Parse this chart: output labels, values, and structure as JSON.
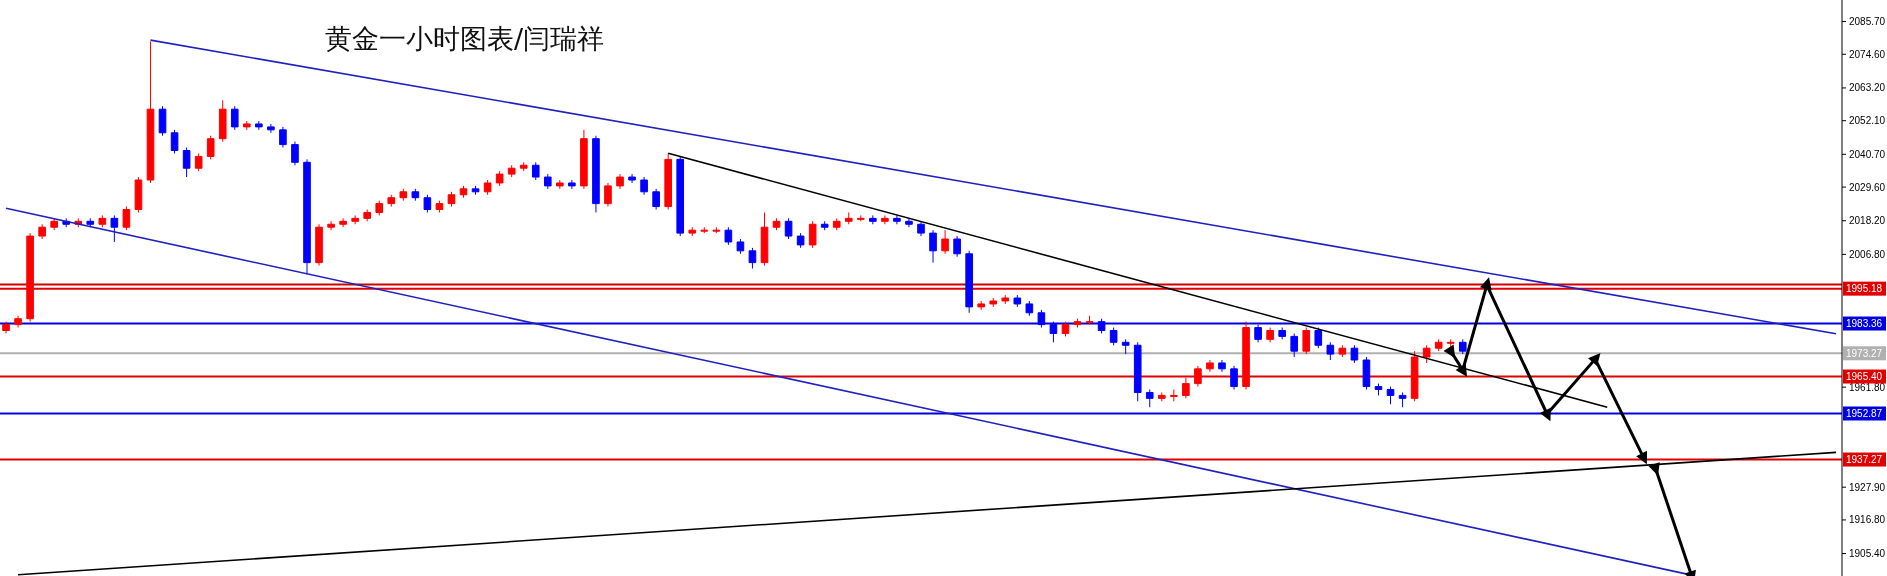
{
  "chart_data": {
    "type": "candlestick",
    "title": "黄金一小时图表/闫瑞祥",
    "categories": [
      null,
      null,
      null,
      null,
      null,
      null,
      null,
      null,
      null,
      null,
      null,
      null,
      null,
      null,
      null,
      null,
      null,
      null,
      null,
      null,
      null,
      null,
      null,
      null,
      null,
      null,
      null,
      null,
      null,
      null,
      null,
      null,
      null,
      null,
      null,
      null,
      null,
      null,
      null,
      null,
      null,
      null,
      null,
      null,
      null,
      null,
      null,
      null,
      null,
      null,
      null,
      null,
      null,
      null,
      null,
      null,
      null,
      null,
      null,
      null,
      null,
      null,
      null,
      null,
      null,
      null,
      null,
      null,
      null,
      null,
      null,
      null,
      null,
      null,
      null,
      null,
      null,
      null,
      null,
      null,
      null,
      null,
      null,
      null,
      null,
      null,
      null,
      null,
      null,
      null,
      null,
      null,
      null,
      null,
      null,
      null,
      null,
      null,
      null,
      null,
      null,
      null,
      null,
      null,
      null,
      null,
      null,
      null,
      null,
      null,
      null,
      null,
      null,
      null,
      null,
      null,
      null,
      null,
      null,
      null,
      null,
      null,
      null,
      null,
      null,
      null,
      null,
      null,
      null,
      null,
      null,
      null,
      null,
      null,
      null,
      null,
      null,
      null,
      null,
      null,
      null,
      null,
      null,
      null,
      null,
      null,
      null,
      null,
      null,
      null,
      null,
      null,
      null
    ],
    "ohlc": [
      [
        1981,
        1984,
        1980,
        1983
      ],
      [
        1983,
        1986,
        1982,
        1985
      ],
      [
        1985,
        2014,
        1984,
        2013
      ],
      [
        2013,
        2017,
        2012,
        2016
      ],
      [
        2016,
        2019,
        2015,
        2018
      ],
      [
        2018,
        2019,
        2016,
        2017
      ],
      [
        2017,
        2019,
        2016,
        2018
      ],
      [
        2018,
        2019,
        2016,
        2017
      ],
      [
        2017,
        2020,
        2016,
        2019
      ],
      [
        2019,
        2020,
        2011,
        2016
      ],
      [
        2016,
        2023,
        2015,
        2022
      ],
      [
        2022,
        2033,
        2021,
        2032
      ],
      [
        2032,
        2079,
        2031,
        2056
      ],
      [
        2056,
        2057,
        2047,
        2048
      ],
      [
        2048,
        2049,
        2041,
        2042
      ],
      [
        2042,
        2043,
        2033,
        2036
      ],
      [
        2036,
        2041,
        2035,
        2040
      ],
      [
        2040,
        2047,
        2039,
        2046
      ],
      [
        2046,
        2059,
        2045,
        2056
      ],
      [
        2056,
        2057,
        2049,
        2050
      ],
      [
        2050,
        2052,
        2049,
        2051
      ],
      [
        2051,
        2052,
        2049,
        2050
      ],
      [
        2050,
        2051,
        2048,
        2049
      ],
      [
        2049,
        2050,
        2043,
        2044
      ],
      [
        2044,
        2045,
        2037,
        2038
      ],
      [
        2038,
        2039,
        2000,
        2004
      ],
      [
        2004,
        2017,
        2003,
        2016
      ],
      [
        2016,
        2018,
        2015,
        2017
      ],
      [
        2017,
        2019,
        2016,
        2018
      ],
      [
        2018,
        2020,
        2017,
        2019
      ],
      [
        2019,
        2022,
        2018,
        2021
      ],
      [
        2021,
        2025,
        2020,
        2024
      ],
      [
        2024,
        2027,
        2023,
        2026
      ],
      [
        2026,
        2029,
        2025,
        2028
      ],
      [
        2028,
        2029,
        2025,
        2026
      ],
      [
        2026,
        2027,
        2021,
        2022
      ],
      [
        2022,
        2025,
        2021,
        2024
      ],
      [
        2024,
        2028,
        2023,
        2027
      ],
      [
        2027,
        2030,
        2026,
        2029
      ],
      [
        2029,
        2030,
        2027,
        2028
      ],
      [
        2028,
        2032,
        2027,
        2031
      ],
      [
        2031,
        2035,
        2030,
        2034
      ],
      [
        2034,
        2037,
        2033,
        2036
      ],
      [
        2036,
        2038,
        2035,
        2037
      ],
      [
        2037,
        2038,
        2032,
        2033
      ],
      [
        2033,
        2034,
        2029,
        2030
      ],
      [
        2030,
        2032,
        2029,
        2031
      ],
      [
        2031,
        2032,
        2029,
        2030
      ],
      [
        2030,
        2049,
        2029,
        2046
      ],
      [
        2046,
        2047,
        2021,
        2024
      ],
      [
        2024,
        2031,
        2023,
        2030
      ],
      [
        2030,
        2034,
        2029,
        2033
      ],
      [
        2033,
        2034,
        2031,
        2032
      ],
      [
        2032,
        2033,
        2027,
        2028
      ],
      [
        2028,
        2029,
        2022,
        2023
      ],
      [
        2023,
        2041,
        2022,
        2039
      ],
      [
        2039,
        2040,
        2013,
        2014
      ],
      [
        2014,
        2016,
        2013,
        2015
      ],
      [
        2015,
        2016,
        2014,
        2015
      ],
      [
        2015,
        2016,
        2014,
        2015
      ],
      [
        2015,
        2016,
        2010,
        2011
      ],
      [
        2011,
        2012,
        2007,
        2008
      ],
      [
        2008,
        2009,
        2002,
        2004
      ],
      [
        2004,
        2021,
        2003,
        2016
      ],
      [
        2016,
        2019,
        2015,
        2018
      ],
      [
        2018,
        2019,
        2012,
        2013
      ],
      [
        2013,
        2014,
        2009,
        2010
      ],
      [
        2010,
        2018,
        2009,
        2017
      ],
      [
        2017,
        2018,
        2015,
        2016
      ],
      [
        2016,
        2019,
        2015,
        2018
      ],
      [
        2018,
        2021,
        2017,
        2019
      ],
      [
        2019,
        2020,
        2018,
        2019
      ],
      [
        2019,
        2020,
        2017,
        2018
      ],
      [
        2018,
        2020,
        2017,
        2019
      ],
      [
        2019,
        2020,
        2017,
        2018
      ],
      [
        2018,
        2019,
        2016,
        2017
      ],
      [
        2017,
        2018,
        2013,
        2014
      ],
      [
        2014,
        2015,
        2004,
        2008
      ],
      [
        2008,
        2015,
        2007,
        2012
      ],
      [
        2012,
        2013,
        2006,
        2007
      ],
      [
        2007,
        2008,
        1987,
        1989
      ],
      [
        1989,
        1991,
        1988,
        1990
      ],
      [
        1990,
        1992,
        1989,
        1991
      ],
      [
        1991,
        1993,
        1990,
        1992
      ],
      [
        1992,
        1993,
        1989,
        1990
      ],
      [
        1990,
        1991,
        1986,
        1987
      ],
      [
        1987,
        1988,
        1982,
        1983
      ],
      [
        1983,
        1984,
        1977,
        1980
      ],
      [
        1980,
        1984,
        1979,
        1983
      ],
      [
        1983,
        1985,
        1982,
        1984
      ],
      [
        1984,
        1986,
        1983,
        1984
      ],
      [
        1984,
        1985,
        1980,
        1981
      ],
      [
        1981,
        1982,
        1976,
        1977
      ],
      [
        1977,
        1978,
        1973,
        1976
      ],
      [
        1976,
        1977,
        1957,
        1960
      ],
      [
        1960,
        1961,
        1955,
        1958
      ],
      [
        1958,
        1960,
        1957,
        1959
      ],
      [
        1959,
        1961,
        1957,
        1959
      ],
      [
        1959,
        1965,
        1958,
        1963
      ],
      [
        1963,
        1969,
        1962,
        1968
      ],
      [
        1968,
        1971,
        1967,
        1970
      ],
      [
        1970,
        1971,
        1967,
        1968
      ],
      [
        1968,
        1969,
        1961,
        1962
      ],
      [
        1962,
        1984,
        1961,
        1982
      ],
      [
        1982,
        1983,
        1977,
        1978
      ],
      [
        1978,
        1982,
        1977,
        1981
      ],
      [
        1981,
        1982,
        1978,
        1979
      ],
      [
        1979,
        1980,
        1972,
        1974
      ],
      [
        1974,
        1982,
        1973,
        1981
      ],
      [
        1981,
        1982,
        1975,
        1976
      ],
      [
        1976,
        1977,
        1971,
        1973
      ],
      [
        1973,
        1976,
        1972,
        1975
      ],
      [
        1975,
        1976,
        1970,
        1971
      ],
      [
        1971,
        1972,
        1961,
        1962
      ],
      [
        1962,
        1963,
        1959,
        1961
      ],
      [
        1961,
        1962,
        1956,
        1959
      ],
      [
        1959,
        1960,
        1955,
        1958
      ],
      [
        1958,
        1974,
        1957,
        1972
      ],
      [
        1972,
        1976,
        1970,
        1975
      ],
      [
        1975,
        1978,
        1974,
        1977
      ],
      [
        1977,
        1978,
        1975,
        1977
      ],
      [
        1977,
        1978,
        1973,
        1974
      ],
      null,
      null,
      null,
      null,
      null,
      null,
      null,
      null,
      null,
      null,
      null,
      null,
      null,
      null,
      null,
      null,
      null,
      null,
      null,
      null,
      null,
      null,
      null,
      null,
      null,
      null,
      null,
      null,
      null,
      null,
      null
    ],
    "colors": [
      "#ff0000",
      "#ff0000",
      "#ff0000",
      "#ff0000",
      "#ff0000",
      "#0000ff",
      "#ff0000",
      "#0000ff",
      "#ff0000",
      "#0000ff",
      "#ff0000",
      "#ff0000",
      "#ff0000",
      "#0000ff",
      "#0000ff",
      "#0000ff",
      "#ff0000",
      "#ff0000",
      "#ff0000",
      "#0000ff",
      "#ff0000",
      "#0000ff",
      "#0000ff",
      "#0000ff",
      "#0000ff",
      "#0000ff",
      "#ff0000",
      "#ff0000",
      "#ff0000",
      "#ff0000",
      "#ff0000",
      "#ff0000",
      "#ff0000",
      "#ff0000",
      "#0000ff",
      "#0000ff",
      "#ff0000",
      "#ff0000",
      "#ff0000",
      "#0000ff",
      "#ff0000",
      "#ff0000",
      "#ff0000",
      "#ff0000",
      "#0000ff",
      "#0000ff",
      "#ff0000",
      "#0000ff",
      "#ff0000",
      "#0000ff",
      "#ff0000",
      "#ff0000",
      "#0000ff",
      "#0000ff",
      "#0000ff",
      "#ff0000",
      "#0000ff",
      "#ff0000",
      "#ff0000",
      "#ff0000",
      "#0000ff",
      "#0000ff",
      "#0000ff",
      "#ff0000",
      "#ff0000",
      "#0000ff",
      "#0000ff",
      "#ff0000",
      "#0000ff",
      "#ff0000",
      "#ff0000",
      "#ff0000",
      "#0000ff",
      "#ff0000",
      "#0000ff",
      "#0000ff",
      "#0000ff",
      "#0000ff",
      "#ff0000",
      "#0000ff",
      "#0000ff",
      "#ff0000",
      "#ff0000",
      "#ff0000",
      "#0000ff",
      "#0000ff",
      "#0000ff",
      "#0000ff",
      "#ff0000",
      "#ff0000",
      "#ff0000",
      "#0000ff",
      "#0000ff",
      "#0000ff",
      "#0000ff",
      "#0000ff",
      "#ff0000",
      "#ff0000",
      "#ff0000",
      "#ff0000",
      "#ff0000",
      "#0000ff",
      "#0000ff",
      "#ff0000",
      "#0000ff",
      "#ff0000",
      "#0000ff",
      "#0000ff",
      "#ff0000",
      "#0000ff",
      "#0000ff",
      "#ff0000",
      "#0000ff",
      "#0000ff",
      "#0000ff",
      "#0000ff",
      "#0000ff",
      "#ff0000",
      "#ff0000",
      "#ff0000",
      "#ff0000",
      "#0000ff",
      null,
      null,
      null,
      null,
      null,
      null,
      null,
      null,
      null,
      null,
      null,
      null,
      null,
      null,
      null,
      null,
      null,
      null,
      null,
      null,
      null,
      null,
      null,
      null,
      null,
      null,
      null,
      null,
      null,
      null,
      null
    ],
    "ylim": [
      1897.8,
      2093.0
    ],
    "yticks": [
      {
        "value": 2085.7,
        "label": "2085.70"
      },
      {
        "value": 2074.6,
        "label": "2074.60"
      },
      {
        "value": 2063.2,
        "label": "2063.20"
      },
      {
        "value": 2052.1,
        "label": "2052.10"
      },
      {
        "value": 2040.7,
        "label": "2040.70"
      },
      {
        "value": 2029.6,
        "label": "2029.60"
      },
      {
        "value": 2018.2,
        "label": "2018.20"
      },
      {
        "value": 2006.8,
        "label": "2006.80"
      },
      {
        "value": 1961.8,
        "label": "1961.80"
      },
      {
        "value": 1927.9,
        "label": "1927.90"
      },
      {
        "value": 1916.8,
        "label": "1916.80"
      },
      {
        "value": 1905.4,
        "label": "1905.40"
      }
    ],
    "tick_labels": "y",
    "ref_lines": [
      {
        "axis": "y",
        "value": 1996.55,
        "color": "#d00000"
      },
      {
        "axis": "y",
        "value": 1995.18,
        "label": "1995.18",
        "color": "#e00000"
      },
      {
        "axis": "y",
        "value": 1983.36,
        "label": "1983.36",
        "color": "#0000e0"
      },
      {
        "axis": "y",
        "value": 1973.27,
        "label": "1973.27",
        "color": "#b0b0b0"
      },
      {
        "axis": "y",
        "value": 1965.4,
        "label": "1965.40",
        "color": "#e00000"
      },
      {
        "axis": "y",
        "value": 1952.87,
        "label": "1952.87",
        "color": "#0000e0"
      },
      {
        "axis": "y",
        "value": 1937.27,
        "label": "1937.27",
        "color": "#e00000"
      }
    ],
    "series": [
      {
        "type": "line",
        "color": "#2020c0",
        "values": [
          null,
          null,
          null,
          null,
          null,
          null,
          null,
          null,
          null,
          null,
          null,
          null,
          2079.4,
          null,
          null,
          null,
          null,
          null,
          null,
          null,
          null,
          null,
          null,
          null,
          null,
          null,
          null,
          null,
          null,
          null,
          null,
          null,
          null,
          null,
          null,
          null,
          null,
          null,
          null,
          null,
          null,
          null,
          null,
          null,
          null,
          null,
          null,
          null,
          null,
          null,
          null,
          null,
          null,
          null,
          null,
          null,
          null,
          null,
          null,
          null,
          null,
          null,
          null,
          null,
          null,
          null,
          null,
          null,
          null,
          null,
          null,
          null,
          null,
          null,
          null,
          null,
          null,
          null,
          null,
          null,
          null,
          null,
          null,
          null,
          null,
          null,
          null,
          null,
          null,
          null,
          null,
          null,
          null,
          null,
          null,
          null,
          null,
          null,
          null,
          null,
          null,
          null,
          null,
          null,
          null,
          null,
          null,
          null,
          null,
          null,
          null,
          null,
          null,
          null,
          null,
          null,
          null,
          null,
          null,
          null,
          null,
          null,
          null,
          null,
          null,
          null,
          null,
          null,
          null,
          null,
          null,
          null,
          null,
          null,
          null,
          null,
          null,
          null,
          null,
          null,
          null,
          null,
          null,
          null,
          null,
          null,
          null,
          null,
          null,
          null,
          null,
          null,
          1979.9
        ]
      },
      {
        "type": "line",
        "color": "#2020c0",
        "values": [
          2022.4,
          null,
          null,
          null,
          null,
          null,
          null,
          null,
          null,
          null,
          null,
          null,
          null,
          null,
          null,
          null,
          null,
          null,
          null,
          null,
          null,
          null,
          null,
          null,
          null,
          null,
          null,
          null,
          null,
          null,
          null,
          null,
          null,
          null,
          null,
          null,
          null,
          null,
          null,
          null,
          null,
          null,
          null,
          null,
          null,
          null,
          null,
          null,
          null,
          null,
          null,
          null,
          null,
          null,
          null,
          null,
          null,
          null,
          null,
          null,
          null,
          null,
          null,
          null,
          null,
          null,
          null,
          null,
          null,
          null,
          null,
          null,
          null,
          null,
          null,
          null,
          null,
          null,
          null,
          null,
          null,
          null,
          null,
          null,
          null,
          null,
          null,
          null,
          null,
          null,
          null,
          null,
          null,
          null,
          null,
          null,
          null,
          null,
          null,
          null,
          null,
          null,
          null,
          null,
          null,
          null,
          null,
          null,
          null,
          null,
          null,
          null,
          null,
          null,
          null,
          null,
          null,
          null,
          null,
          null,
          null,
          null,
          null,
          null,
          null,
          null,
          null,
          null,
          null,
          null,
          null,
          null,
          null,
          null,
          null,
          null,
          null,
          null,
          null,
          null,
          1898.1,
          null,
          null,
          null,
          null,
          null,
          null,
          null,
          null,
          null,
          null,
          null,
          null
        ]
      },
      {
        "type": "line",
        "color": "#000000",
        "values": [
          null,
          null,
          null,
          null,
          null,
          null,
          null,
          null,
          null,
          null,
          null,
          null,
          null,
          null,
          null,
          null,
          null,
          null,
          null,
          null,
          null,
          null,
          null,
          null,
          null,
          null,
          null,
          null,
          null,
          null,
          null,
          null,
          null,
          null,
          null,
          null,
          null,
          null,
          null,
          null,
          null,
          null,
          null,
          null,
          null,
          null,
          null,
          null,
          null,
          null,
          null,
          null,
          null,
          null,
          null,
          2041.1,
          null,
          null,
          null,
          null,
          null,
          null,
          null,
          null,
          null,
          null,
          null,
          null,
          null,
          null,
          null,
          null,
          null,
          null,
          null,
          null,
          null,
          null,
          null,
          null,
          null,
          null,
          null,
          null,
          null,
          null,
          null,
          null,
          null,
          null,
          null,
          null,
          null,
          null,
          null,
          null,
          null,
          null,
          null,
          null,
          null,
          null,
          null,
          null,
          null,
          null,
          null,
          null,
          null,
          null,
          null,
          null,
          null,
          null,
          null,
          null,
          null,
          null,
          null,
          null,
          null,
          null,
          null,
          null,
          null,
          null,
          null,
          null,
          null,
          null,
          null,
          null,
          null,
          1955.0,
          null,
          null,
          null,
          null,
          null,
          null,
          null,
          null,
          null,
          null,
          null,
          null,
          null,
          null,
          null,
          null,
          null,
          null,
          null
        ]
      },
      {
        "type": "line",
        "color": "#000000",
        "values": [
          null,
          1898.2,
          null,
          null,
          null,
          null,
          null,
          null,
          null,
          null,
          null,
          null,
          null,
          null,
          null,
          null,
          null,
          null,
          null,
          null,
          null,
          null,
          null,
          null,
          null,
          null,
          null,
          null,
          null,
          null,
          null,
          null,
          null,
          null,
          null,
          null,
          null,
          null,
          null,
          null,
          null,
          null,
          null,
          null,
          null,
          null,
          null,
          null,
          null,
          null,
          null,
          null,
          null,
          null,
          null,
          null,
          null,
          null,
          null,
          null,
          null,
          null,
          null,
          null,
          null,
          null,
          null,
          null,
          null,
          null,
          null,
          null,
          null,
          null,
          null,
          null,
          null,
          null,
          null,
          null,
          null,
          null,
          null,
          null,
          null,
          null,
          null,
          null,
          null,
          null,
          null,
          null,
          null,
          null,
          null,
          null,
          null,
          null,
          null,
          null,
          null,
          null,
          null,
          null,
          null,
          null,
          null,
          null,
          null,
          null,
          null,
          null,
          null,
          null,
          null,
          null,
          null,
          null,
          null,
          null,
          null,
          null,
          null,
          null,
          null,
          null,
          null,
          null,
          null,
          null,
          null,
          null,
          null,
          null,
          null,
          null,
          null,
          null,
          null,
          null,
          null,
          null,
          null,
          null,
          null,
          null,
          null,
          null,
          null,
          null,
          null,
          null,
          1939.7
        ]
      },
      {
        "type": "line",
        "color": "#000000",
        "marker": "triangle",
        "values": [
          null,
          null,
          null,
          null,
          null,
          null,
          null,
          null,
          null,
          null,
          null,
          null,
          null,
          null,
          null,
          null,
          null,
          null,
          null,
          null,
          null,
          null,
          null,
          null,
          null,
          null,
          null,
          null,
          null,
          null,
          null,
          null,
          null,
          null,
          null,
          null,
          null,
          null,
          null,
          null,
          null,
          null,
          null,
          null,
          null,
          null,
          null,
          null,
          null,
          null,
          null,
          null,
          null,
          null,
          null,
          null,
          null,
          null,
          null,
          null,
          null,
          null,
          null,
          null,
          null,
          null,
          null,
          null,
          null,
          null,
          null,
          null,
          null,
          null,
          null,
          null,
          null,
          null,
          null,
          null,
          null,
          null,
          null,
          null,
          null,
          null,
          null,
          null,
          null,
          null,
          null,
          null,
          null,
          null,
          null,
          null,
          null,
          null,
          null,
          null,
          null,
          null,
          null,
          null,
          null,
          null,
          null,
          null,
          null,
          null,
          null,
          null,
          null,
          null,
          null,
          null,
          null,
          null,
          null,
          null,
          1974,
          1967.6,
          null,
          1996.4,
          null,
          null,
          null,
          null,
          1952.7,
          null,
          null,
          null,
          1971.3,
          null,
          null,
          null,
          1938.1,
          null,
          null,
          null,
          null,
          null,
          null,
          null,
          null,
          null,
          null,
          null,
          null,
          null,
          null,
          null,
          null
        ]
      },
      {
        "type": "line",
        "color": "#000000",
        "marker": "triangle",
        "values": [
          null,
          null,
          null,
          null,
          null,
          null,
          null,
          null,
          null,
          null,
          null,
          null,
          null,
          null,
          null,
          null,
          null,
          null,
          null,
          null,
          null,
          null,
          null,
          null,
          null,
          null,
          null,
          null,
          null,
          null,
          null,
          null,
          null,
          null,
          null,
          null,
          null,
          null,
          null,
          null,
          null,
          null,
          null,
          null,
          null,
          null,
          null,
          null,
          null,
          null,
          null,
          null,
          null,
          null,
          null,
          null,
          null,
          null,
          null,
          null,
          null,
          null,
          null,
          null,
          null,
          null,
          null,
          null,
          null,
          null,
          null,
          null,
          null,
          null,
          null,
          null,
          null,
          null,
          null,
          null,
          null,
          null,
          null,
          null,
          null,
          null,
          null,
          null,
          null,
          null,
          null,
          null,
          null,
          null,
          null,
          null,
          null,
          null,
          null,
          null,
          null,
          null,
          null,
          null,
          null,
          null,
          null,
          null,
          null,
          null,
          null,
          null,
          null,
          null,
          null,
          null,
          null,
          null,
          null,
          null,
          null,
          null,
          null,
          null,
          null,
          null,
          null,
          null,
          null,
          null,
          null,
          null,
          null,
          null,
          null,
          null,
          null,
          1934.4,
          null,
          null,
          1898,
          null,
          null,
          null,
          null,
          null,
          null,
          null,
          null,
          null,
          null,
          null,
          null
        ]
      }
    ]
  }
}
